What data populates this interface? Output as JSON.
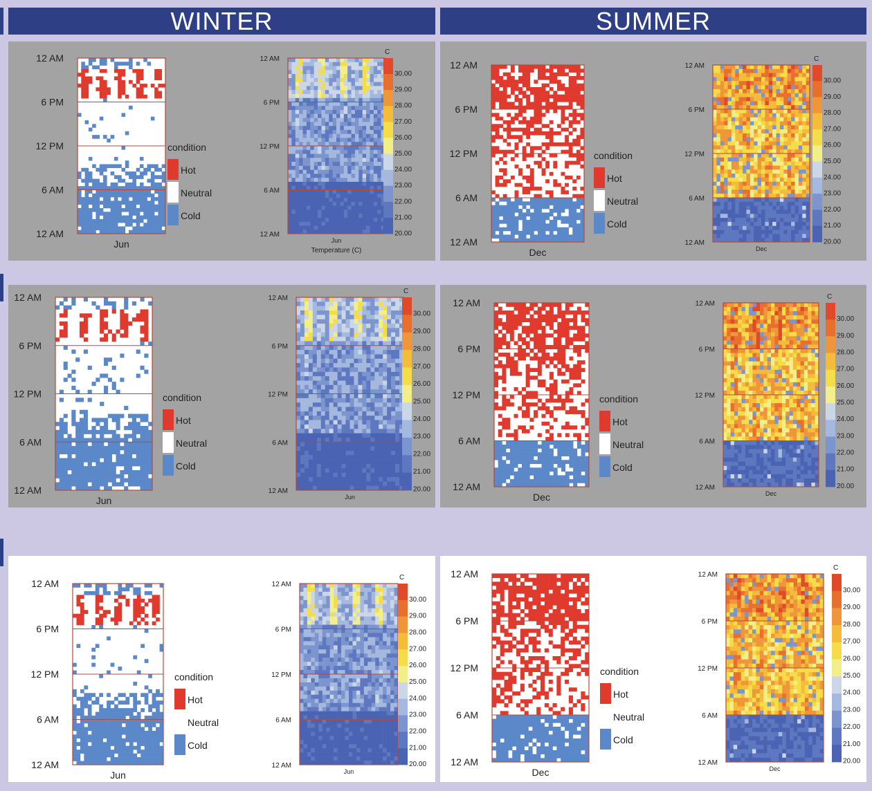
{
  "headers": {
    "winter": "WINTER",
    "summer": "SUMMER"
  },
  "colors": {
    "hot": "#e03a2e",
    "neutral": "#ffffff",
    "cold": "#5b88c9",
    "panel_gray": "#a3a3a3",
    "panel_white": "#ffffff",
    "frame": "#b24a3a",
    "scale": [
      "#4a63b3",
      "#5e78c0",
      "#7c95cf",
      "#a4b9dd",
      "#cbd6e6",
      "#f2ef8a",
      "#f5dd4a",
      "#f5bc3a",
      "#ef963a",
      "#e8702e",
      "#e04a28"
    ]
  },
  "chart_data": [
    {
      "id": "winter-1",
      "type": "heatmap",
      "season": "winter",
      "month": "Jun",
      "y_ticks": [
        "12 AM",
        "6 PM",
        "12 PM",
        "6 AM",
        "12 AM"
      ],
      "condition_xlabel": "Jun",
      "temperature_xlabel": "Jun",
      "temperature_title": "Temperature (C)",
      "legend_title": "condition",
      "legend": [
        "Hot",
        "Neutral",
        "Cold"
      ],
      "scale_unit": "C",
      "scale_values": [
        "30.00",
        "29.00",
        "28.00",
        "27.00",
        "26.00",
        "25.00",
        "24.00",
        "23.00",
        "22.00",
        "21.00",
        "20.00"
      ]
    },
    {
      "id": "summer-1",
      "type": "heatmap",
      "season": "summer",
      "month": "Dec",
      "y_ticks": [
        "12 AM",
        "6 PM",
        "12 PM",
        "6 AM",
        "12 AM"
      ],
      "condition_xlabel": "Dec",
      "temperature_xlabel": "Dec",
      "temperature_title": "",
      "legend_title": "condition",
      "legend": [
        "Hot",
        "Neutral",
        "Cold"
      ],
      "scale_unit": "C",
      "scale_values": [
        "30.00",
        "29.00",
        "28.00",
        "27.00",
        "26.00",
        "25.00",
        "24.00",
        "23.00",
        "22.00",
        "21.00",
        "20.00"
      ]
    },
    {
      "id": "winter-2",
      "type": "heatmap",
      "season": "winter",
      "month": "Jun",
      "y_ticks": [
        "12 AM",
        "6 PM",
        "12 PM",
        "6 AM",
        "12 AM"
      ],
      "condition_xlabel": "Jun",
      "temperature_xlabel": "Jun",
      "temperature_title": "",
      "legend_title": "condition",
      "legend": [
        "Hot",
        "Neutral",
        "Cold"
      ],
      "scale_unit": "C",
      "scale_values": [
        "30.00",
        "29.00",
        "28.00",
        "27.00",
        "26.00",
        "25.00",
        "24.00",
        "23.00",
        "22.00",
        "21.00",
        "20.00"
      ]
    },
    {
      "id": "summer-2",
      "type": "heatmap",
      "season": "summer",
      "month": "Dec",
      "y_ticks": [
        "12 AM",
        "6 PM",
        "12 PM",
        "6 AM",
        "12 AM"
      ],
      "condition_xlabel": "Dec",
      "temperature_xlabel": "Dec",
      "temperature_title": "",
      "legend_title": "condition",
      "legend": [
        "Hot",
        "Neutral",
        "Cold"
      ],
      "scale_unit": "C",
      "scale_values": [
        "30.00",
        "29.00",
        "28.00",
        "27.00",
        "26.00",
        "25.00",
        "24.00",
        "23.00",
        "22.00",
        "21.00",
        "20.00"
      ]
    },
    {
      "id": "winter-3",
      "type": "heatmap",
      "season": "winter",
      "month": "Jun",
      "y_ticks": [
        "12 AM",
        "6 PM",
        "12 PM",
        "6 AM",
        "12 AM"
      ],
      "condition_xlabel": "Jun",
      "temperature_xlabel": "Jun",
      "temperature_title": "",
      "legend_title": "condition",
      "legend": [
        "Hot",
        "Neutral",
        "Cold"
      ],
      "scale_unit": "C",
      "scale_values": [
        "30.00",
        "29.00",
        "28.00",
        "27.00",
        "26.00",
        "25.00",
        "24.00",
        "23.00",
        "22.00",
        "21.00",
        "20.00"
      ]
    },
    {
      "id": "summer-3",
      "type": "heatmap",
      "season": "summer",
      "month": "Dec",
      "y_ticks": [
        "12 AM",
        "6 PM",
        "12 PM",
        "6 AM",
        "12 AM"
      ],
      "condition_xlabel": "Dec",
      "temperature_xlabel": "Dec",
      "temperature_title": "",
      "legend_title": "condition",
      "legend": [
        "Hot",
        "Neutral",
        "Cold"
      ],
      "scale_unit": "C",
      "scale_values": [
        "30.00",
        "29.00",
        "28.00",
        "27.00",
        "26.00",
        "25.00",
        "24.00",
        "23.00",
        "22.00",
        "21.00",
        "20.00"
      ]
    }
  ]
}
